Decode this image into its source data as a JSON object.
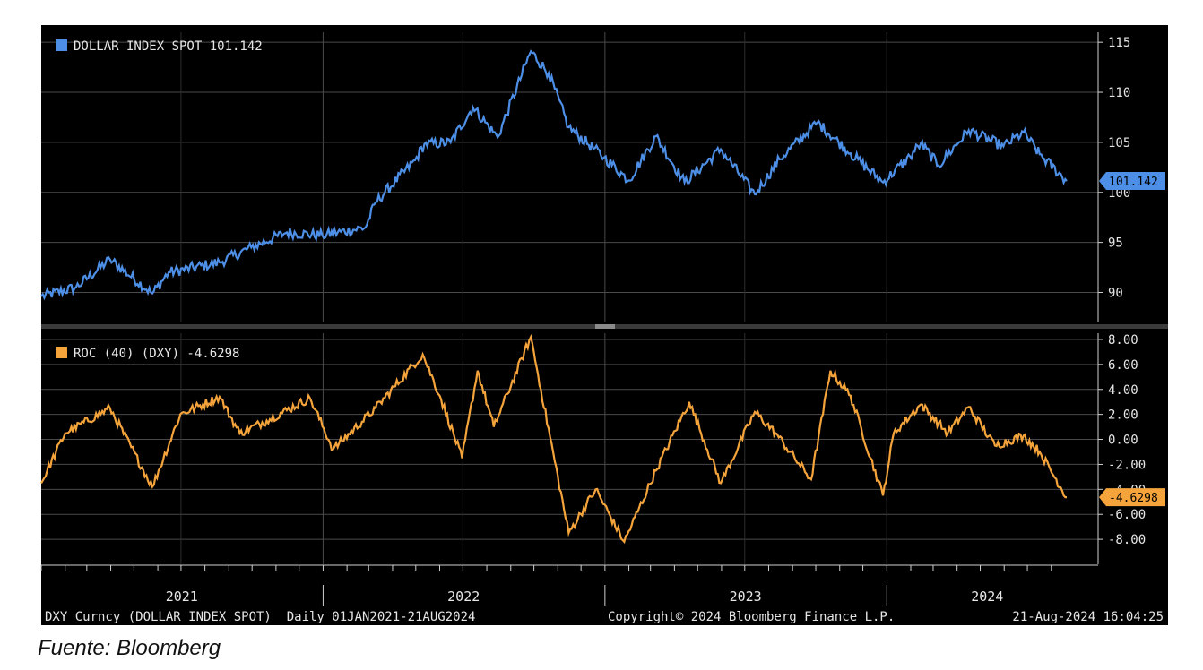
{
  "source_note": "Fuente: Bloomberg",
  "footer": {
    "left": "DXY Curncy (DOLLAR INDEX SPOT)  Daily 01JAN2021-21AUG2024",
    "center": "Copyright© 2024 Bloomberg Finance L.P.",
    "right": "21-Aug-2024 16:04:25"
  },
  "colors": {
    "background": "#000000",
    "grid": "#4a4a4a",
    "axis": "#cfcfcf",
    "dxy": "#4d8fe6",
    "roc": "#f5a43b"
  },
  "chart_data": [
    {
      "type": "line",
      "legend": "DOLLAR INDEX SPOT 101.142",
      "last_value_label": "101.142",
      "last_value": 101.142,
      "ylim": [
        87,
        116
      ],
      "yticks": [
        90,
        95,
        100,
        105,
        110,
        115
      ],
      "ytick_labels": [
        "90",
        "95",
        "100",
        "105",
        "110",
        "115"
      ],
      "grid": true,
      "legend_position": "top-left",
      "xlim": [
        "2021-01-01",
        "2024-08-21"
      ],
      "x": [
        "2021-01-01",
        "2021-02-15",
        "2021-03-31",
        "2021-05-25",
        "2021-06-15",
        "2021-08-20",
        "2021-09-30",
        "2021-11-15",
        "2021-12-31",
        "2022-02-25",
        "2022-03-10",
        "2022-04-30",
        "2022-05-12",
        "2022-06-15",
        "2022-07-14",
        "2022-08-15",
        "2022-09-27",
        "2022-10-20",
        "2022-11-15",
        "2022-12-31",
        "2023-02-01",
        "2023-03-08",
        "2023-04-14",
        "2023-05-31",
        "2023-07-14",
        "2023-08-15",
        "2023-10-03",
        "2023-11-15",
        "2023-12-27",
        "2024-01-31",
        "2024-02-14",
        "2024-03-08",
        "2024-04-16",
        "2024-05-31",
        "2024-06-26",
        "2024-07-17",
        "2024-08-21"
      ],
      "y": [
        89.6,
        90.5,
        93.3,
        89.9,
        92.0,
        93.0,
        94.5,
        96.0,
        95.7,
        96.5,
        99.0,
        103.2,
        104.8,
        105.0,
        108.5,
        105.5,
        114.1,
        111.9,
        106.5,
        103.5,
        101.2,
        105.6,
        101.0,
        104.3,
        99.8,
        103.3,
        107.0,
        103.9,
        101.0,
        103.6,
        104.9,
        102.7,
        106.2,
        104.6,
        106.0,
        103.8,
        101.142
      ]
    },
    {
      "type": "line",
      "legend": "ROC (40) (DXY) -4.6298",
      "last_value_label": "-4.6298",
      "last_value": -4.6298,
      "ylim": [
        -10,
        8.5
      ],
      "yticks": [
        -8,
        -6,
        -4,
        -2,
        0,
        2,
        4,
        6,
        8
      ],
      "ytick_labels": [
        "-8.00",
        "-6.00",
        "-4.00",
        "-2.00",
        "0.00",
        "2.00",
        "4.00",
        "6.00",
        "8.00"
      ],
      "grid": true,
      "legend_position": "top-left",
      "xlim": [
        "2021-01-01",
        "2024-08-21"
      ],
      "x": [
        "2021-01-01",
        "2021-02-01",
        "2021-03-31",
        "2021-05-25",
        "2021-06-30",
        "2021-08-20",
        "2021-09-15",
        "2021-10-20",
        "2021-12-15",
        "2022-01-14",
        "2022-03-10",
        "2022-05-10",
        "2022-06-01",
        "2022-06-30",
        "2022-07-20",
        "2022-08-10",
        "2022-09-27",
        "2022-10-10",
        "2022-11-15",
        "2022-12-20",
        "2023-01-26",
        "2023-03-08",
        "2023-04-20",
        "2023-05-31",
        "2023-07-14",
        "2023-08-10",
        "2023-09-25",
        "2023-10-20",
        "2023-11-15",
        "2023-12-27",
        "2024-01-10",
        "2024-02-14",
        "2024-03-20",
        "2024-04-16",
        "2024-05-20",
        "2024-06-26",
        "2024-07-17",
        "2024-08-21"
      ],
      "y": [
        -3.5,
        0.5,
        2.5,
        -3.8,
        2.0,
        3.4,
        0.5,
        1.5,
        3.3,
        -0.8,
        2.5,
        6.8,
        3.5,
        -1.5,
        5.5,
        1.0,
        8.2,
        4.0,
        -7.5,
        -4.0,
        -8.2,
        -2.5,
        3.0,
        -3.5,
        2.2,
        0.5,
        -3.2,
        5.5,
        3.5,
        -4.5,
        0.5,
        2.8,
        0.5,
        2.6,
        -0.5,
        0.3,
        -1.0,
        -4.6298
      ]
    }
  ],
  "x_axis": {
    "labels": [
      "2021",
      "2022",
      "2023",
      "2024"
    ],
    "label_dates": [
      "2021-07-02",
      "2022-07-02",
      "2023-07-02",
      "2024-05-10"
    ],
    "year_starts": [
      "2022-01-01",
      "2023-01-01",
      "2024-01-01"
    ],
    "xlim": [
      "2021-01-01",
      "2024-08-21"
    ]
  }
}
